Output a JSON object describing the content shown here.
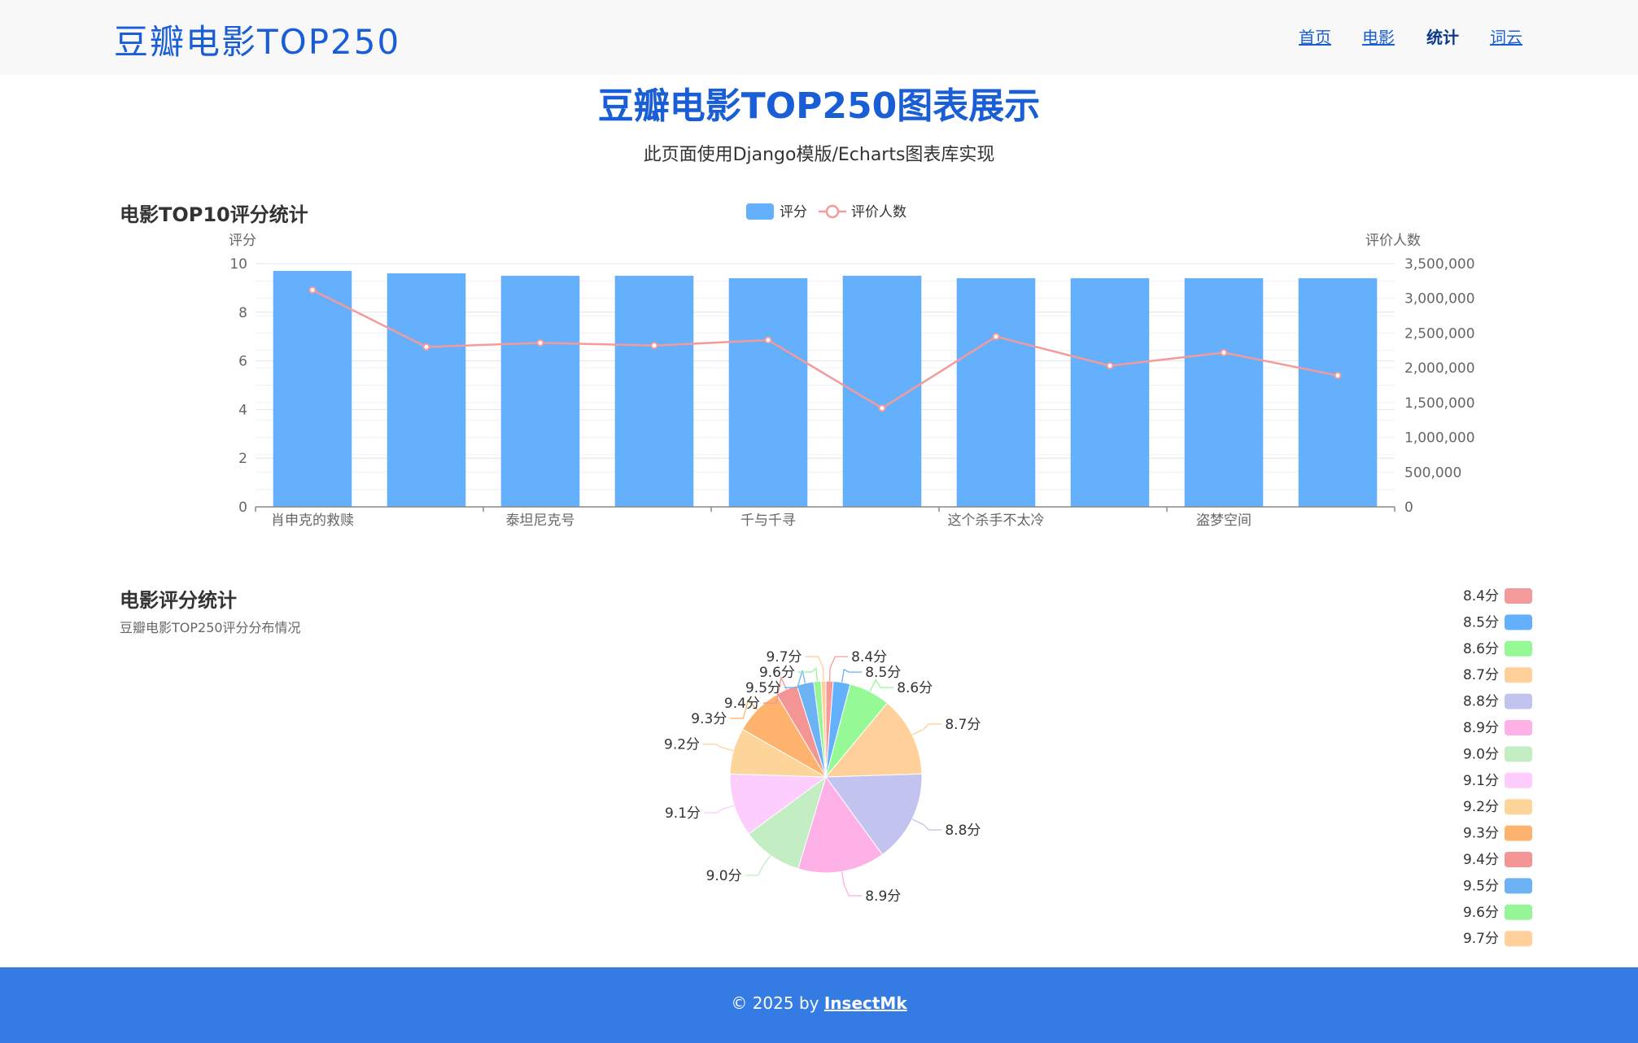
{
  "nav": {
    "brand": "豆瓣电影TOP250",
    "links": [
      {
        "label": "首页"
      },
      {
        "label": "电影"
      },
      {
        "label": "统计"
      },
      {
        "label": "词云"
      }
    ]
  },
  "header": {
    "title": "豆瓣电影TOP250图表展示",
    "subtitle": "此页面使用Django模版/Echarts图表库实现"
  },
  "bar_section": {
    "title": "电影TOP10评分统计"
  },
  "pie_section": {
    "title": "电影评分统计",
    "subtitle": "豆瓣电影TOP250评分分布情况"
  },
  "footer": {
    "prefix": "© 2025 by ",
    "author": "InsectMk"
  },
  "chart_data": [
    {
      "type": "bar",
      "title": "电影TOP10评分统计",
      "legend_position": "top-center",
      "categories_labeled": [
        "肖申克的救赎",
        "泰坦尼克号",
        "千与千寻",
        "这个杀手不太冷",
        "盗梦空间"
      ],
      "y_left": {
        "label": "评分",
        "ylim": [
          0,
          10
        ],
        "ticks": [
          "0",
          "2",
          "4",
          "6",
          "8",
          "10"
        ]
      },
      "y_right": {
        "label": "评价人数",
        "ylim": [
          0,
          3500000
        ],
        "ticks": [
          "0",
          "500,000",
          "1,000,000",
          "1,500,000",
          "2,000,000",
          "2,500,000",
          "3,000,000",
          "3,500,000"
        ]
      },
      "series": [
        {
          "name": "评分",
          "type": "bar",
          "color": "#64b0fd",
          "values": [
            9.7,
            9.6,
            9.5,
            9.5,
            9.4,
            9.5,
            9.4,
            9.4,
            9.4,
            9.4
          ]
        },
        {
          "name": "评价人数",
          "type": "line",
          "color": "#f49a9a",
          "values": [
            3120000,
            2300000,
            2360000,
            2320000,
            2400000,
            1420000,
            2450000,
            2030000,
            2220000,
            1890000
          ]
        }
      ],
      "grid": true
    },
    {
      "type": "pie",
      "title": "电影评分统计",
      "subtitle": "豆瓣电影TOP250评分分布情况",
      "legend_position": "right",
      "slices": [
        {
          "label": "8.4分",
          "value": 3,
          "color": "#f59a9a"
        },
        {
          "label": "8.5分",
          "value": 7,
          "color": "#64b0fd"
        },
        {
          "label": "8.6分",
          "value": 17,
          "color": "#95f995"
        },
        {
          "label": "8.7分",
          "value": 33,
          "color": "#ffd09a"
        },
        {
          "label": "8.8分",
          "value": 38,
          "color": "#c3c3f0"
        },
        {
          "label": "8.9分",
          "value": 36,
          "color": "#fdb1e6"
        },
        {
          "label": "9.0分",
          "value": 25,
          "color": "#c3edc3"
        },
        {
          "label": "9.1分",
          "value": 26,
          "color": "#fdcdfd"
        },
        {
          "label": "9.2分",
          "value": 19,
          "color": "#fdd59a"
        },
        {
          "label": "9.3分",
          "value": 20,
          "color": "#fdb36d"
        },
        {
          "label": "9.4分",
          "value": 9,
          "color": "#f49595"
        },
        {
          "label": "9.5分",
          "value": 7,
          "color": "#6db2f5"
        },
        {
          "label": "9.6分",
          "value": 3,
          "color": "#96f596"
        },
        {
          "label": "9.7分",
          "value": 2,
          "color": "#ffd09a"
        }
      ]
    }
  ]
}
